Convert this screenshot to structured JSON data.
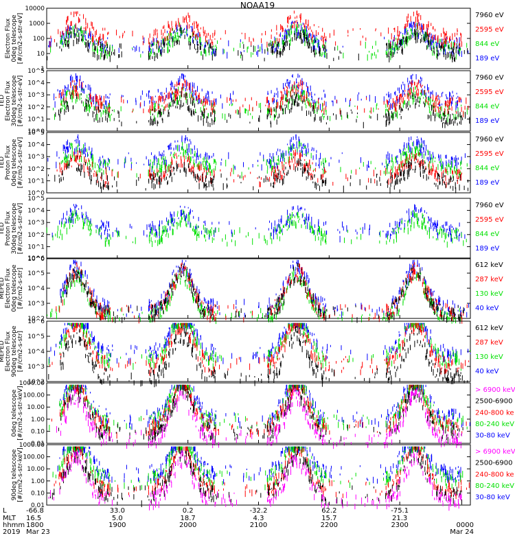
{
  "title": "NOAA19",
  "colors": {
    "black": "#000000",
    "red": "#ff0000",
    "green": "#00e000",
    "blue": "#0000ff",
    "magenta": "#ff00ff"
  },
  "chart_data": [
    {
      "type": "scatter",
      "ylabel": [
        "Electron Flux",
        "0deg telescope",
        "[#/cm2-s-str-eV]"
      ],
      "yscale": "log",
      "ylim": [
        1,
        10000
      ],
      "yticks": [
        "1",
        "10",
        "100",
        "1000",
        "10000"
      ],
      "legend": [
        {
          "label": "7960 eV",
          "color": "black"
        },
        {
          "label": "2595 eV",
          "color": "red"
        },
        {
          "label": "844 eV",
          "color": "green"
        },
        {
          "label": "189 eV",
          "color": "blue"
        }
      ],
      "series": [
        {
          "name": "189 eV",
          "color": "blue",
          "level": 0.4
        },
        {
          "name": "844 eV",
          "color": "green",
          "level": 0.35
        },
        {
          "name": "2595 eV",
          "color": "red",
          "level": 0.55
        },
        {
          "name": "7960 eV",
          "color": "black",
          "level": 0.3
        }
      ]
    },
    {
      "type": "scatter",
      "ylabel": [
        "TED",
        "Electron Flux",
        "30deg telescope",
        "[#/cm2-s-str-eV]"
      ],
      "yscale": "log",
      "ylim": [
        1,
        100000
      ],
      "yticks": [
        "10^0",
        "10^1",
        "10^2",
        "10^3",
        "10^4",
        "10^5"
      ],
      "legend": [
        {
          "label": "7960 eV",
          "color": "black"
        },
        {
          "label": "2595 eV",
          "color": "red"
        },
        {
          "label": "844 eV",
          "color": "green"
        },
        {
          "label": "189 eV",
          "color": "blue"
        }
      ],
      "series": [
        {
          "name": "189 eV",
          "color": "blue",
          "level": 0.55
        },
        {
          "name": "844 eV",
          "color": "green",
          "level": 0.35
        },
        {
          "name": "2595 eV",
          "color": "red",
          "level": 0.45
        },
        {
          "name": "7960 eV",
          "color": "black",
          "level": 0.25
        }
      ]
    },
    {
      "type": "scatter",
      "ylabel": [
        "TED",
        "Proton Flux",
        "0deg telescope",
        "[#/cm2-s-str-eV]"
      ],
      "yscale": "log",
      "ylim": [
        1,
        100000
      ],
      "yticks": [
        "10^0",
        "10^1",
        "10^2",
        "10^3",
        "10^4",
        "10^5"
      ],
      "legend": [
        {
          "label": "7960 eV",
          "color": "black"
        },
        {
          "label": "2595 eV",
          "color": "red"
        },
        {
          "label": "844 eV",
          "color": "green"
        },
        {
          "label": "189 eV",
          "color": "blue"
        }
      ],
      "series": [
        {
          "name": "189 eV",
          "color": "blue",
          "level": 0.55
        },
        {
          "name": "844 eV",
          "color": "green",
          "level": 0.45
        },
        {
          "name": "2595 eV",
          "color": "red",
          "level": 0.3
        },
        {
          "name": "7960 eV",
          "color": "black",
          "level": 0.2
        }
      ]
    },
    {
      "type": "scatter",
      "ylabel": [
        "TED",
        "Proton Flux",
        "30deg telescope",
        "[#/cm2-s-str-eV]"
      ],
      "yscale": "log",
      "ylim": [
        1,
        100000
      ],
      "yticks": [
        "10^0",
        "10^1",
        "10^2",
        "10^3",
        "10^4",
        "10^5"
      ],
      "legend": [
        {
          "label": "7960 eV",
          "color": "black"
        },
        {
          "label": "2595 eV",
          "color": "red"
        },
        {
          "label": "844 eV",
          "color": "green"
        },
        {
          "label": "189 eV",
          "color": "blue"
        }
      ],
      "series": [
        {
          "name": "189 eV",
          "color": "blue",
          "level": 0.5
        },
        {
          "name": "844 eV",
          "color": "green",
          "level": 0.4
        }
      ]
    },
    {
      "type": "scatter",
      "ylabel": [
        "MEPED",
        "Electron Flux",
        "0deg telescope",
        "[#/cm2-s-str]"
      ],
      "yscale": "log",
      "ylim": [
        100,
        1000000
      ],
      "yticks": [
        "10^2",
        "10^3",
        "10^4",
        "10^5",
        "10^6"
      ],
      "legend": [
        {
          "label": "612 keV",
          "color": "black"
        },
        {
          "label": "287 keV",
          "color": "red"
        },
        {
          "label": "130 keV",
          "color": "green"
        },
        {
          "label": "40 keV",
          "color": "blue"
        }
      ],
      "series": [
        {
          "name": "40 keV",
          "color": "blue",
          "level": 0.2
        },
        {
          "name": "130 keV",
          "color": "green",
          "level": 0.05
        },
        {
          "name": "287 keV",
          "color": "red",
          "level": 0.12
        },
        {
          "name": "612 keV",
          "color": "black",
          "level": 0.1
        }
      ]
    },
    {
      "type": "scatter",
      "ylabel": [
        "MEPED",
        "Electron Flux",
        "90deg telescope",
        "[#/cm2-s-str]"
      ],
      "yscale": "log",
      "ylim": [
        100,
        1000000
      ],
      "yticks": [
        "10^2",
        "10^3",
        "10^4",
        "10^5",
        "10^6"
      ],
      "legend": [
        {
          "label": "612 keV",
          "color": "black"
        },
        {
          "label": "287 keV",
          "color": "red"
        },
        {
          "label": "130 keV",
          "color": "green"
        },
        {
          "label": "40 keV",
          "color": "blue"
        }
      ],
      "series": [
        {
          "name": "40 keV",
          "color": "blue",
          "level": 0.5
        },
        {
          "name": "130 keV",
          "color": "green",
          "level": 0.4
        },
        {
          "name": "287 keV",
          "color": "red",
          "level": 0.3
        },
        {
          "name": "612 keV",
          "color": "black",
          "level": 0.1
        }
      ]
    },
    {
      "type": "scatter",
      "ylabel": [
        "0deg telescope",
        "[#/cm2-s-str-keV]"
      ],
      "yscale": "log",
      "ylim": [
        0.01,
        1000
      ],
      "yticks": [
        "0.01",
        "0.10",
        "1.00",
        "10.00",
        "100.00",
        "1000.00"
      ],
      "legend": [
        {
          "label": "> 6900 keV",
          "color": "magenta"
        },
        {
          "label": "2500-6900",
          "color": "black"
        },
        {
          "label": "240-800 ke",
          "color": "red"
        },
        {
          "label": "80-240 keV",
          "color": "green"
        },
        {
          "label": "30-80 keV",
          "color": "blue"
        }
      ],
      "series": [
        {
          "name": "30-80 keV",
          "color": "blue",
          "level": 0.45
        },
        {
          "name": "80-240 keV",
          "color": "green",
          "level": 0.38
        },
        {
          "name": "240-800 ke",
          "color": "red",
          "level": 0.3
        },
        {
          "name": "2500-6900",
          "color": "black",
          "level": 0.2
        },
        {
          "name": "> 6900 keV",
          "color": "magenta",
          "level": 0.1
        }
      ]
    },
    {
      "type": "scatter",
      "ylabel": [
        "90deg telescope",
        "[#/cm2-s-str-keV]"
      ],
      "yscale": "log",
      "ylim": [
        0.01,
        1000
      ],
      "yticks": [
        "0.01",
        "0.10",
        "1.00",
        "10.00",
        "100.00",
        "1000.00"
      ],
      "legend": [
        {
          "label": "> 6900 keV",
          "color": "magenta"
        },
        {
          "label": "2500-6900",
          "color": "black"
        },
        {
          "label": "240-800 ke",
          "color": "red"
        },
        {
          "label": "80-240 keV",
          "color": "green"
        },
        {
          "label": "30-80 keV",
          "color": "blue"
        }
      ],
      "series": [
        {
          "name": "30-80 keV",
          "color": "blue",
          "level": 0.55
        },
        {
          "name": "80-240 keV",
          "color": "green",
          "level": 0.45
        },
        {
          "name": "240-800 ke",
          "color": "red",
          "level": 0.3
        },
        {
          "name": "2500-6900",
          "color": "black",
          "level": 0.2
        },
        {
          "name": "> 6900 keV",
          "color": "magenta",
          "level": 0.1
        }
      ]
    }
  ],
  "xaxis": {
    "row_labels": [
      "L",
      "MLT",
      "hhmm",
      "2019"
    ],
    "columns": [
      {
        "rows": [
          "-66.8",
          "16.5",
          "1800",
          "Mar 23"
        ]
      },
      {
        "rows": [
          "33.0",
          "5.0",
          "1900",
          ""
        ]
      },
      {
        "rows": [
          "0.2",
          "18.7",
          "2000",
          ""
        ]
      },
      {
        "rows": [
          "-32.2",
          "4.3",
          "2100",
          ""
        ]
      },
      {
        "rows": [
          "62.2",
          "15.7",
          "2200",
          ""
        ]
      },
      {
        "rows": [
          "-75.1",
          "21.3",
          "2300",
          ""
        ]
      },
      {
        "rows": [
          "",
          "",
          "0000",
          "Mar 24"
        ]
      }
    ]
  }
}
